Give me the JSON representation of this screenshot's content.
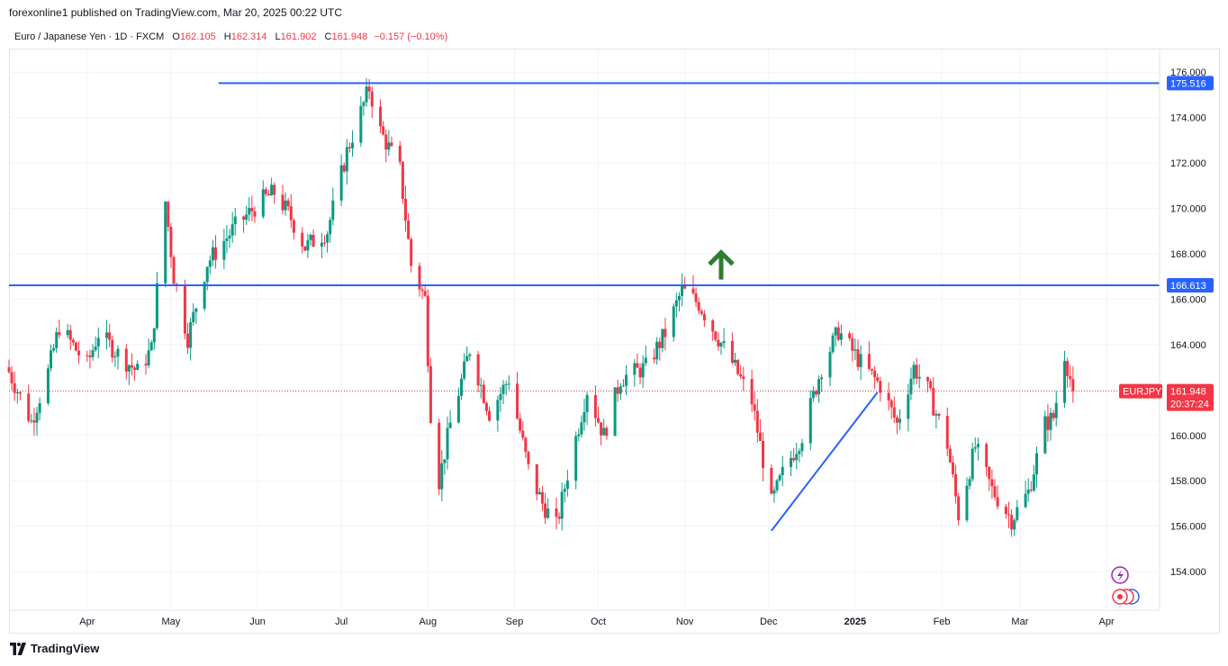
{
  "header": {
    "published_by": "forexonline1 published on TradingView.com, Mar 20, 2025 00:22 UTC"
  },
  "legend": {
    "symbol": "Euro / Japanese Yen · 1D · FXCM",
    "open_label": "O",
    "open": "162.105",
    "high_label": "H",
    "high": "162.314",
    "low_label": "L",
    "low": "161.902",
    "close_label": "C",
    "close": "161.948",
    "change": "−0.157 (−0.10%)"
  },
  "footer": {
    "brand": "TradingView"
  },
  "colors": {
    "up": "#089981",
    "down": "#f23645",
    "line": "#2962ff",
    "arrow": "#2e7d32",
    "grid": "#f0f3fa",
    "price_line": "#f23645"
  },
  "chart_data": {
    "type": "candlestick",
    "symbol": "EURJPY",
    "timeframe": "1D",
    "ylim": [
      152.3,
      177.0
    ],
    "y_ticks": [
      "154.000",
      "156.000",
      "158.000",
      "160.000",
      "162.000",
      "164.000",
      "166.000",
      "168.000",
      "170.000",
      "172.000",
      "174.000",
      "176.000"
    ],
    "x_ticks": [
      "Apr",
      "May",
      "Jun",
      "Jul",
      "Aug",
      "Sep",
      "Oct",
      "Nov",
      "Dec",
      "2025",
      "Feb",
      "Mar",
      "Apr"
    ],
    "x_tick_dates": [
      "2024-04-01",
      "2024-05-01",
      "2024-06-01",
      "2024-07-01",
      "2024-08-01",
      "2024-09-01",
      "2024-10-01",
      "2024-11-01",
      "2024-12-01",
      "2025-01-01",
      "2025-02-01",
      "2025-03-01",
      "2025-04-01"
    ],
    "x_range": [
      "2024-03-04",
      "2025-04-20"
    ],
    "current_price": "161.948",
    "current_symbol_label": "EURJPY",
    "countdown": "20:37:24",
    "horizontal_lines": [
      {
        "price": 175.516,
        "label": "175.516",
        "start": "2024-05-18"
      },
      {
        "price": 166.613,
        "label": "166.613",
        "start": "2024-03-04"
      }
    ],
    "trend_line": {
      "start": {
        "date": "2024-12-02",
        "price": 155.8
      },
      "end": {
        "date": "2025-01-09",
        "price": 161.9
      }
    },
    "arrow": {
      "date": "2024-11-14",
      "price": 167.5,
      "direction": "up"
    },
    "anchor_points": [
      [
        "2024-03-04",
        162.8
      ],
      [
        "2024-03-12",
        160.6
      ],
      [
        "2024-03-18",
        162.8
      ],
      [
        "2024-03-22",
        164.8
      ],
      [
        "2024-04-01",
        163.1
      ],
      [
        "2024-04-05",
        164.5
      ],
      [
        "2024-04-12",
        163.6
      ],
      [
        "2024-04-19",
        162.8
      ],
      [
        "2024-04-24",
        163.8
      ],
      [
        "2024-04-29",
        170.3
      ],
      [
        "2024-05-02",
        167.0
      ],
      [
        "2024-05-07",
        164.3
      ],
      [
        "2024-05-14",
        167.6
      ],
      [
        "2024-05-24",
        169.2
      ],
      [
        "2024-06-03",
        170.4
      ],
      [
        "2024-06-07",
        170.7
      ],
      [
        "2024-06-12",
        169.8
      ],
      [
        "2024-06-18",
        168.3
      ],
      [
        "2024-06-26",
        169.0
      ],
      [
        "2024-07-03",
        172.5
      ],
      [
        "2024-07-11",
        175.3
      ],
      [
        "2024-07-15",
        173.4
      ],
      [
        "2024-07-22",
        171.7
      ],
      [
        "2024-07-26",
        167.5
      ],
      [
        "2024-07-31",
        166.0
      ],
      [
        "2024-08-02",
        161.0
      ],
      [
        "2024-08-05",
        158.0
      ],
      [
        "2024-08-09",
        160.5
      ],
      [
        "2024-08-16",
        163.8
      ],
      [
        "2024-08-23",
        161.0
      ],
      [
        "2024-08-30",
        162.5
      ],
      [
        "2024-09-06",
        158.5
      ],
      [
        "2024-09-11",
        157.0
      ],
      [
        "2024-09-16",
        156.0
      ],
      [
        "2024-09-20",
        158.3
      ],
      [
        "2024-09-27",
        162.0
      ],
      [
        "2024-10-03",
        160.0
      ],
      [
        "2024-10-09",
        162.5
      ],
      [
        "2024-10-18",
        163.0
      ],
      [
        "2024-10-25",
        164.5
      ],
      [
        "2024-10-31",
        166.4
      ],
      [
        "2024-11-06",
        165.8
      ],
      [
        "2024-11-12",
        164.5
      ],
      [
        "2024-11-18",
        163.2
      ],
      [
        "2024-11-25",
        161.5
      ],
      [
        "2024-12-02",
        157.0
      ],
      [
        "2024-12-06",
        158.3
      ],
      [
        "2024-12-13",
        160.0
      ],
      [
        "2024-12-20",
        163.0
      ],
      [
        "2024-12-26",
        164.6
      ],
      [
        "2025-01-03",
        163.2
      ],
      [
        "2025-01-10",
        162.2
      ],
      [
        "2025-01-16",
        160.5
      ],
      [
        "2025-01-22",
        163.0
      ],
      [
        "2025-01-27",
        162.0
      ],
      [
        "2025-02-03",
        159.6
      ],
      [
        "2025-02-07",
        156.5
      ],
      [
        "2025-02-13",
        159.5
      ],
      [
        "2025-02-19",
        157.6
      ],
      [
        "2025-02-26",
        156.3
      ],
      [
        "2025-03-04",
        157.5
      ],
      [
        "2025-03-10",
        160.5
      ],
      [
        "2025-03-13",
        160.8
      ],
      [
        "2025-03-17",
        163.6
      ],
      [
        "2025-03-20",
        161.948
      ]
    ]
  }
}
